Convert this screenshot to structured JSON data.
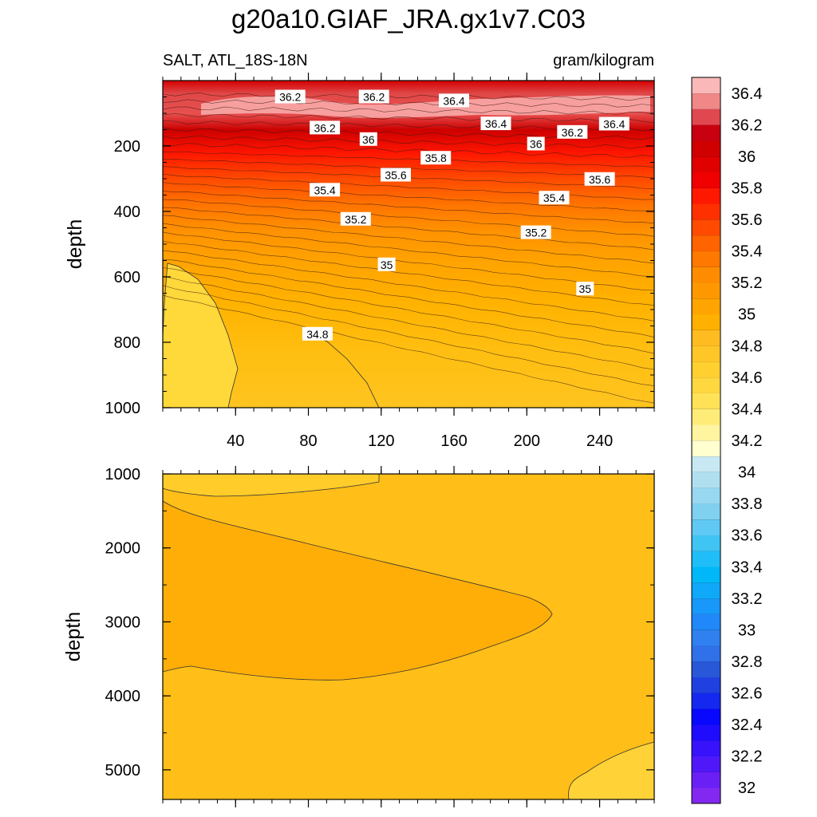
{
  "title": "g20a10.GIAF_JRA.gx1v7.C03",
  "chart_data": {
    "type": "heatmap",
    "variable_label": "SALT, ATL_18S-18N",
    "units_label": "gram/kilogram",
    "x_tick_labels": [
      "40",
      "80",
      "120",
      "160",
      "200",
      "240"
    ],
    "x_ticks": [
      40,
      80,
      120,
      160,
      200,
      240
    ],
    "xlim": [
      0,
      270
    ],
    "panels": [
      {
        "name": "upper",
        "ylabel": "depth",
        "ylim": [
          0,
          1000
        ],
        "y_tick_labels": [
          "200",
          "400",
          "600",
          "800",
          "1000"
        ],
        "y_ticks": [
          200,
          400,
          600,
          800,
          1000
        ],
        "contour_labels": [
          {
            "text": "36.2",
            "x": 70,
            "depth": 50
          },
          {
            "text": "36.2",
            "x": 116,
            "depth": 50
          },
          {
            "text": "36.4",
            "x": 160,
            "depth": 62
          },
          {
            "text": "36.2",
            "x": 89,
            "depth": 145
          },
          {
            "text": "36.4",
            "x": 183,
            "depth": 132
          },
          {
            "text": "36.2",
            "x": 225,
            "depth": 158
          },
          {
            "text": "36.4",
            "x": 248,
            "depth": 133
          },
          {
            "text": "36",
            "x": 113,
            "depth": 180
          },
          {
            "text": "36",
            "x": 205,
            "depth": 194
          },
          {
            "text": "35.8",
            "x": 150,
            "depth": 237
          },
          {
            "text": "35.6",
            "x": 128,
            "depth": 289
          },
          {
            "text": "35.6",
            "x": 240,
            "depth": 302
          },
          {
            "text": "35.4",
            "x": 89,
            "depth": 335
          },
          {
            "text": "35.4",
            "x": 215,
            "depth": 359
          },
          {
            "text": "35.2",
            "x": 106,
            "depth": 424
          },
          {
            "text": "35.2",
            "x": 205,
            "depth": 465
          },
          {
            "text": "35",
            "x": 123,
            "depth": 563
          },
          {
            "text": "35",
            "x": 232,
            "depth": 637
          },
          {
            "text": "34.8",
            "x": 85,
            "depth": 775
          }
        ]
      },
      {
        "name": "lower",
        "ylabel": "depth",
        "ylim": [
          1000,
          5400
        ],
        "y_tick_labels": [
          "1000",
          "2000",
          "3000",
          "4000",
          "5000"
        ],
        "y_ticks": [
          1000,
          2000,
          3000,
          4000,
          5000
        ]
      }
    ],
    "colorbar": {
      "levels": [
        32,
        32.1,
        32.2,
        32.3,
        32.4,
        32.5,
        32.6,
        32.7,
        32.8,
        32.9,
        33,
        33.1,
        33.2,
        33.3,
        33.4,
        33.5,
        33.6,
        33.7,
        33.8,
        33.9,
        34,
        34.1,
        34.2,
        34.3,
        34.4,
        34.5,
        34.6,
        34.7,
        34.8,
        34.9,
        35,
        35.1,
        35.2,
        35.3,
        35.4,
        35.5,
        35.6,
        35.7,
        35.8,
        35.9,
        36,
        36.1,
        36.2,
        36.3,
        36.4,
        36.5
      ],
      "colors": [
        "#8228f0",
        "#6a1ff5",
        "#5018f8",
        "#3812fb",
        "#200cfd",
        "#0808ff",
        "#1428f0",
        "#2040e0",
        "#2858d8",
        "#3070e8",
        "#3080f0",
        "#2088f8",
        "#1898f8",
        "#10a8f8",
        "#00b8f8",
        "#20bef8",
        "#40c4f4",
        "#60c8f4",
        "#80d0f0",
        "#98d8f0",
        "#b0e0f0",
        "#c8e8f4",
        "#ffffd0",
        "#fff4a0",
        "#ffec78",
        "#ffe258",
        "#ffd840",
        "#ffd030",
        "#ffc628",
        "#ffbc20",
        "#ffb000",
        "#ffa400",
        "#ff9800",
        "#ff8c00",
        "#ff7800",
        "#ff6400",
        "#ff4a00",
        "#ff3000",
        "#ff1800",
        "#f00000",
        "#e00000",
        "#d00000",
        "#c80010",
        "#e04850",
        "#f08888",
        "#fbb8b8"
      ],
      "tick_labels": [
        "32",
        "32.2",
        "32.4",
        "32.6",
        "32.8",
        "33",
        "33.2",
        "33.4",
        "33.6",
        "33.8",
        "34",
        "34.2",
        "34.4",
        "34.6",
        "34.8",
        "35",
        "35.2",
        "35.4",
        "35.6",
        "35.8",
        "36",
        "36.2",
        "36.4"
      ]
    }
  }
}
